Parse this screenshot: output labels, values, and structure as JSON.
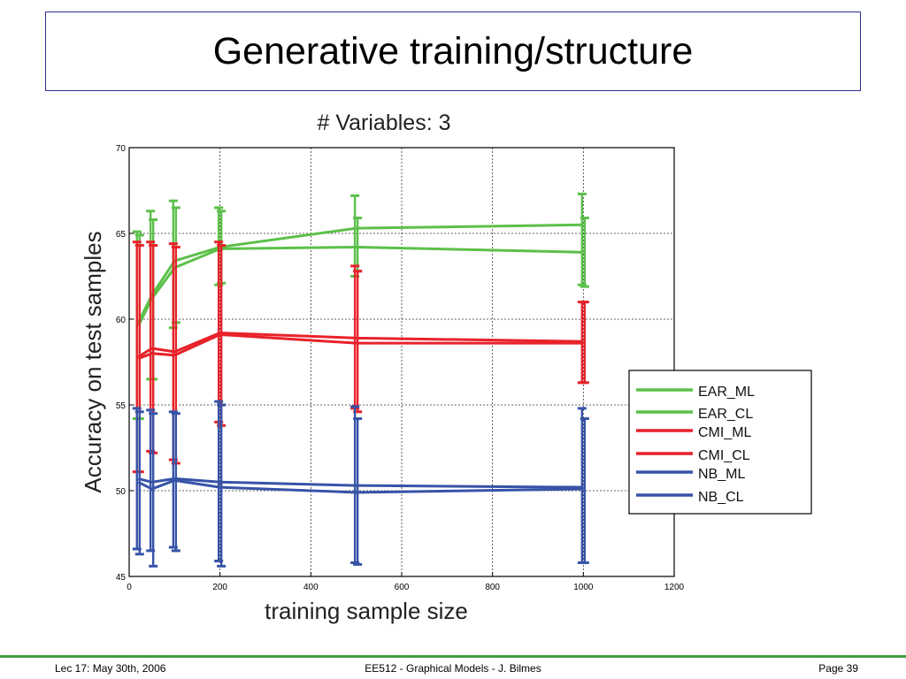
{
  "slide": {
    "title": "Generative training/structure"
  },
  "footer": {
    "left": "Lec 17: May 30th, 2006",
    "center": "EE512 - Graphical Models - J. Bilmes",
    "right": "Page 39"
  },
  "chart_data": {
    "type": "line",
    "title": "# Variables: 3",
    "xlabel": "training sample size",
    "ylabel": "Accuracy on test samples",
    "xlim": [
      0,
      1200
    ],
    "ylim": [
      45,
      70
    ],
    "xticks": [
      0,
      200,
      400,
      600,
      800,
      1000,
      1200
    ],
    "yticks": [
      45,
      50,
      55,
      60,
      65,
      70
    ],
    "grid": true,
    "legend_position": "right",
    "x": [
      20,
      50,
      100,
      200,
      500,
      1000
    ],
    "series": [
      {
        "name": "EAR_ML",
        "color": "#5cc04a",
        "values": [
          59.8,
          61.4,
          63.4,
          64.2,
          65.3,
          65.5
        ],
        "err_low": [
          54.2,
          56.5,
          59.5,
          62.0,
          62.5,
          62.0
        ],
        "err_high": [
          65.1,
          66.3,
          66.9,
          66.5,
          67.2,
          67.3
        ]
      },
      {
        "name": "EAR_CL",
        "color": "#5cc04a",
        "values": [
          59.6,
          61.2,
          63.0,
          64.1,
          64.2,
          63.9
        ],
        "err_low": [
          54.2,
          56.5,
          59.8,
          62.1,
          62.8,
          61.9
        ],
        "err_high": [
          64.9,
          65.8,
          66.5,
          66.3,
          65.9,
          65.9
        ]
      },
      {
        "name": "CMI_ML",
        "color": "#e8222a",
        "values": [
          57.8,
          58.3,
          58.1,
          59.2,
          58.9,
          58.7
        ],
        "err_low": [
          51.1,
          52.3,
          51.8,
          54.0,
          54.8,
          56.3
        ],
        "err_high": [
          64.5,
          64.5,
          64.4,
          64.5,
          63.1,
          61.0
        ]
      },
      {
        "name": "CMI_CL",
        "color": "#e8222a",
        "values": [
          57.7,
          58.0,
          57.9,
          59.1,
          58.6,
          58.6
        ],
        "err_low": [
          51.1,
          52.2,
          51.6,
          53.8,
          54.6,
          56.3
        ],
        "err_high": [
          64.3,
          64.3,
          64.2,
          64.3,
          62.8,
          61.0
        ]
      },
      {
        "name": "NB_ML",
        "color": "#3653a8",
        "values": [
          50.7,
          50.5,
          50.7,
          50.5,
          50.3,
          50.2
        ],
        "err_low": [
          46.6,
          46.5,
          46.7,
          45.9,
          45.8,
          45.8
        ],
        "err_high": [
          54.8,
          54.7,
          54.6,
          55.2,
          54.9,
          54.8
        ]
      },
      {
        "name": "NB_CL",
        "color": "#3653a8",
        "values": [
          50.5,
          50.1,
          50.6,
          50.2,
          49.9,
          50.1
        ],
        "err_low": [
          46.3,
          45.6,
          46.5,
          45.6,
          45.7,
          45.8
        ],
        "err_high": [
          54.6,
          54.5,
          54.5,
          55.0,
          54.2,
          54.2
        ]
      }
    ]
  }
}
